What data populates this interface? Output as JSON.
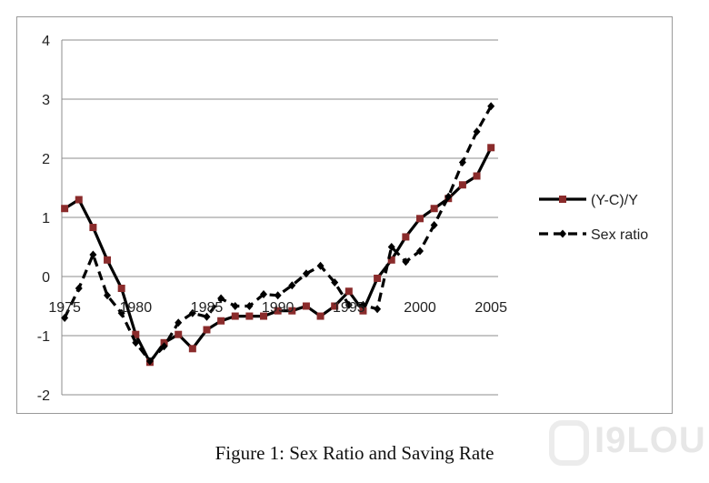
{
  "chart_data": {
    "type": "line",
    "title": "",
    "xlabel": "",
    "ylabel": "",
    "x": [
      1975,
      1976,
      1977,
      1978,
      1979,
      1980,
      1981,
      1982,
      1983,
      1984,
      1985,
      1986,
      1987,
      1988,
      1989,
      1990,
      1991,
      1992,
      1993,
      1994,
      1995,
      1996,
      1997,
      1998,
      1999,
      2000,
      2001,
      2002,
      2003,
      2004,
      2005
    ],
    "xticks": [
      1975,
      1980,
      1985,
      1990,
      1995,
      2000,
      2005
    ],
    "xtick_labels": [
      "1975",
      "1980",
      "1985",
      "1990",
      "1995",
      "2000",
      "2005"
    ],
    "xlim": [
      1974.8,
      2005.5
    ],
    "yticks": [
      4,
      3,
      2,
      1,
      0,
      -1,
      -2
    ],
    "ytick_labels": [
      "4",
      "3",
      "2",
      "1",
      "0",
      "-1",
      "-2"
    ],
    "ylim": [
      -2,
      4
    ],
    "grid": "horizontal",
    "legend": "right",
    "series": [
      {
        "name": "(Y-C)/Y",
        "style": "solid",
        "marker": "square",
        "color": "#000000",
        "marker_color": "#8a2b2b",
        "values": [
          1.15,
          1.3,
          0.83,
          0.28,
          -0.2,
          -0.98,
          -1.45,
          -1.12,
          -0.98,
          -1.22,
          -0.9,
          -0.75,
          -0.67,
          -0.67,
          -0.67,
          -0.58,
          -0.58,
          -0.5,
          -0.67,
          -0.5,
          -0.25,
          -0.58,
          -0.03,
          0.28,
          0.67,
          0.98,
          1.15,
          1.32,
          1.55,
          1.7,
          2.18
        ]
      },
      {
        "name": "Sex ratio",
        "style": "dashed",
        "marker": "diamond",
        "color": "#000000",
        "marker_color": "#000000",
        "values": [
          -0.7,
          -0.2,
          0.37,
          -0.32,
          -0.62,
          -1.12,
          -1.43,
          -1.18,
          -0.78,
          -0.62,
          -0.68,
          -0.37,
          -0.5,
          -0.5,
          -0.3,
          -0.32,
          -0.15,
          0.05,
          0.18,
          -0.1,
          -0.48,
          -0.48,
          -0.55,
          0.5,
          0.25,
          0.43,
          0.87,
          1.35,
          1.93,
          2.45,
          2.88
        ]
      }
    ]
  },
  "caption": "Figure 1:  Sex Ratio and Saving Rate",
  "watermark": "I9LOU"
}
